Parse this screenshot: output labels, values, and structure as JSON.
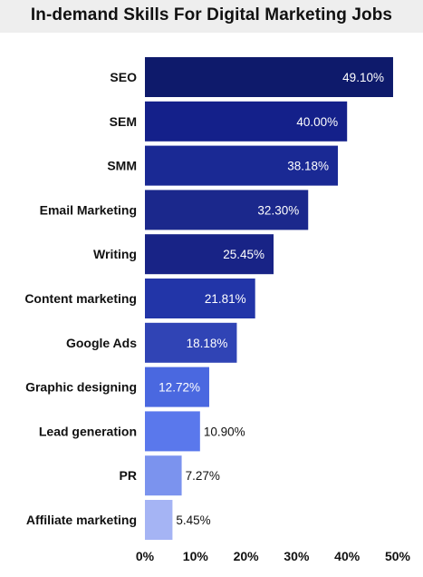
{
  "chart_data": {
    "type": "bar",
    "orientation": "horizontal",
    "title": "In-demand Skills For Digital Marketing Jobs",
    "categories": [
      "SEO",
      "SEM",
      "SMM",
      "Email Marketing",
      "Writing",
      "Content marketing",
      "Google Ads",
      "Graphic designing",
      "Lead generation",
      "PR",
      "Affiliate marketing"
    ],
    "values": [
      49.1,
      40.0,
      38.18,
      32.3,
      25.45,
      21.81,
      18.18,
      12.72,
      10.9,
      7.27,
      5.45
    ],
    "value_labels": [
      "49.10%",
      "40.00%",
      "38.18%",
      "32.30%",
      "25.45%",
      "21.81%",
      "18.18%",
      "12.72%",
      "10.90%",
      "7.27%",
      "5.45%"
    ],
    "bar_colors": [
      "#0e1a6b",
      "#14208a",
      "#1a2994",
      "#1b288c",
      "#182386",
      "#2235a8",
      "#3044b5",
      "#4a68e0",
      "#5a78ec",
      "#7b93ee",
      "#a5b4f4"
    ],
    "value_label_colors": [
      "#ffffff",
      "#ffffff",
      "#ffffff",
      "#ffffff",
      "#ffffff",
      "#ffffff",
      "#ffffff",
      "#ffffff",
      "#111111",
      "#111111",
      "#111111"
    ],
    "x_ticks": [
      "0%",
      "10%",
      "20%",
      "30%",
      "40%",
      "50%"
    ],
    "xlim": [
      0,
      50
    ],
    "grid": false,
    "legend": "none"
  }
}
